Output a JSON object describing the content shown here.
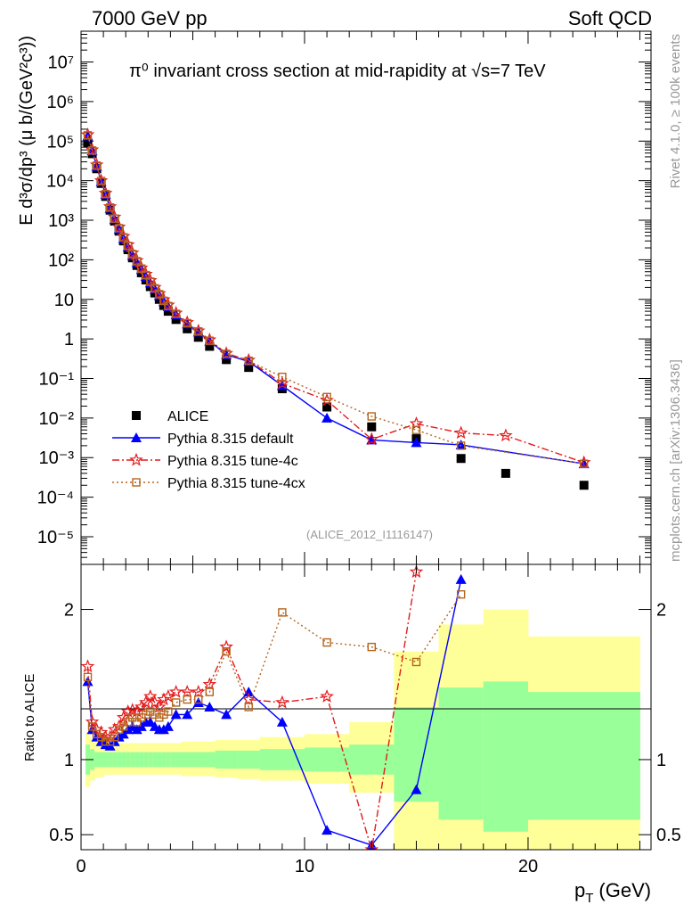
{
  "header": {
    "left": "7000 GeV pp",
    "right": "Soft QCD",
    "side_top": "Rivet 4.1.0, ≥ 100k events",
    "side_bottom": "mcplots.cern.ch [arXiv:1306.3436]"
  },
  "chart_data": [
    {
      "type": "scatter",
      "panel": "main",
      "title": "π⁰ invariant cross section at mid-rapidity at √s=7 TeV",
      "ylabel": "E d³σ/dp³ (μ b/(GeV²c³))",
      "xlabel": "",
      "yscale": "log",
      "xlim": [
        0,
        25.5
      ],
      "ylim": [
        2e-06,
        60000000.0
      ],
      "yticks": [
        "10⁻⁵",
        "10⁻⁴",
        "10⁻³",
        "10⁻²",
        "10⁻¹",
        "1",
        "10",
        "10²",
        "10³",
        "10⁴",
        "10⁵",
        "10⁶",
        "10⁷"
      ],
      "analysis_tag": "(ALICE_2012_I1116147)",
      "legend_position": "lower-left",
      "series": [
        {
          "name": "ALICE",
          "color": "#000000",
          "marker": "square",
          "x": [
            0.3,
            0.5,
            0.7,
            0.9,
            1.1,
            1.3,
            1.5,
            1.7,
            1.9,
            2.1,
            2.3,
            2.5,
            2.7,
            2.9,
            3.1,
            3.3,
            3.5,
            3.7,
            3.9,
            4.25,
            4.75,
            5.25,
            5.75,
            6.5,
            7.5,
            9.0,
            11.0,
            13.0,
            15.0,
            17.0,
            19.0,
            22.5
          ],
          "y": [
            90000,
            48000,
            20000,
            8500,
            4000,
            1800,
            950,
            530,
            300,
            180,
            112,
            72,
            47,
            31,
            21,
            14.5,
            10,
            7,
            5,
            3.1,
            1.8,
            1.1,
            0.65,
            0.3,
            0.19,
            0.055,
            0.019,
            0.006,
            0.003,
            0.00095,
            0.0004,
            0.0002
          ]
        },
        {
          "name": "Pythia 8.315 default",
          "color": "#0000ff",
          "marker": "triangle",
          "line": "solid",
          "x": [
            0.3,
            0.5,
            0.7,
            0.9,
            1.1,
            1.3,
            1.5,
            1.7,
            1.9,
            2.1,
            2.3,
            2.5,
            2.7,
            2.9,
            3.1,
            3.3,
            3.5,
            3.7,
            3.9,
            4.25,
            4.75,
            5.25,
            5.75,
            6.5,
            7.5,
            9.0,
            11.0,
            13.0,
            15.0,
            17.0,
            22.5
          ],
          "y": [
            135000,
            57000,
            23000,
            9500,
            4500,
            2000,
            1050,
            590,
            340,
            210,
            130,
            85,
            57,
            38,
            26,
            18,
            12.5,
            8.8,
            6.5,
            4.1,
            2.4,
            1.5,
            0.88,
            0.4,
            0.27,
            0.066,
            0.01,
            0.0028,
            0.0024,
            0.0021,
            0.0007
          ]
        },
        {
          "name": "Pythia 8.315 tune-4c",
          "color": "#e41a1c",
          "marker": "star",
          "line": "dash-dot",
          "x": [
            0.3,
            0.5,
            0.7,
            0.9,
            1.1,
            1.3,
            1.5,
            1.7,
            1.9,
            2.1,
            2.3,
            2.5,
            2.7,
            2.9,
            3.1,
            3.3,
            3.5,
            3.7,
            3.9,
            4.25,
            4.75,
            5.25,
            5.75,
            6.5,
            7.5,
            9.0,
            11.0,
            13.0,
            15.0,
            17.0,
            19.0,
            22.5
          ],
          "y": [
            145000,
            60000,
            25000,
            10000,
            4800,
            2200,
            1200,
            670,
            390,
            240,
            148,
            96,
            62,
            43,
            30,
            20,
            14,
            9.8,
            7.2,
            4.5,
            2.6,
            1.6,
            0.95,
            0.43,
            0.29,
            0.075,
            0.028,
            0.0029,
            0.0072,
            0.0042,
            0.0036,
            0.00075
          ]
        },
        {
          "name": "Pythia 8.315 tune-4cx",
          "color": "#b5651d",
          "marker": "open-square",
          "line": "dotted",
          "x": [
            0.3,
            0.5,
            0.7,
            0.9,
            1.1,
            1.3,
            1.5,
            1.7,
            1.9,
            2.1,
            2.3,
            2.5,
            2.7,
            2.9,
            3.1,
            3.3,
            3.5,
            3.7,
            3.9,
            4.25,
            4.75,
            5.25,
            5.75,
            6.5,
            7.5,
            9.0,
            11.0,
            13.0,
            15.0,
            17.0,
            22.5
          ],
          "y": [
            140000,
            58000,
            24000,
            9800,
            4600,
            2100,
            1100,
            630,
            370,
            225,
            140,
            92,
            60,
            41,
            28,
            19,
            13.5,
            9.2,
            6.8,
            4.3,
            2.5,
            1.55,
            0.9,
            0.42,
            0.28,
            0.11,
            0.034,
            0.011,
            0.005,
            0.002,
            0.0007
          ]
        }
      ]
    },
    {
      "type": "line",
      "panel": "ratio",
      "ylabel": "Ratio to ALICE",
      "xlabel": "p_T (GeV)",
      "xlabel_main": "p",
      "xlabel_sub": "T",
      "xlabel_unit": "(GeV)",
      "xlim": [
        0,
        25.5
      ],
      "ylim": [
        0.4,
        2.3
      ],
      "xticks": [
        "0",
        "10",
        "20"
      ],
      "yticks": [
        "0.5",
        "1",
        "2"
      ],
      "uncertainty_bands": {
        "edges": [
          0.2,
          0.4,
          0.6,
          0.8,
          1.0,
          1.2,
          1.4,
          1.6,
          1.8,
          2.0,
          2.2,
          2.4,
          2.6,
          2.8,
          3.0,
          3.2,
          3.4,
          3.6,
          3.8,
          4.0,
          4.5,
          5.0,
          5.5,
          6.0,
          7.0,
          8.0,
          10.0,
          12.0,
          14.0,
          16.0,
          18.0,
          20.0,
          25.0
        ],
        "stat_lo": [
          0.9,
          0.93,
          0.95,
          0.95,
          0.95,
          0.95,
          0.95,
          0.95,
          0.95,
          0.95,
          0.95,
          0.95,
          0.95,
          0.95,
          0.95,
          0.95,
          0.95,
          0.95,
          0.95,
          0.95,
          0.95,
          0.95,
          0.95,
          0.94,
          0.94,
          0.93,
          0.92,
          0.9,
          0.72,
          0.6,
          0.52,
          0.6
        ],
        "stat_hi": [
          1.1,
          1.07,
          1.05,
          1.05,
          1.05,
          1.05,
          1.05,
          1.05,
          1.05,
          1.05,
          1.05,
          1.05,
          1.05,
          1.05,
          1.05,
          1.05,
          1.05,
          1.05,
          1.05,
          1.05,
          1.05,
          1.05,
          1.05,
          1.06,
          1.06,
          1.07,
          1.08,
          1.1,
          1.35,
          1.48,
          1.52,
          1.45
        ],
        "total_lo": [
          0.82,
          0.86,
          0.88,
          0.88,
          0.9,
          0.9,
          0.9,
          0.9,
          0.9,
          0.9,
          0.9,
          0.9,
          0.9,
          0.9,
          0.9,
          0.9,
          0.9,
          0.9,
          0.9,
          0.9,
          0.89,
          0.89,
          0.89,
          0.88,
          0.87,
          0.86,
          0.84,
          0.78,
          0.4,
          0.4,
          0.4,
          0.4
        ],
        "total_hi": [
          1.18,
          1.14,
          1.12,
          1.12,
          1.11,
          1.11,
          1.11,
          1.11,
          1.11,
          1.11,
          1.11,
          1.11,
          1.11,
          1.11,
          1.11,
          1.11,
          1.11,
          1.11,
          1.11,
          1.11,
          1.12,
          1.12,
          1.12,
          1.13,
          1.13,
          1.15,
          1.17,
          1.25,
          1.72,
          1.9,
          2.0,
          1.82
        ]
      },
      "series": [
        {
          "name": "Pythia 8.315 default",
          "x": [
            0.3,
            0.5,
            0.7,
            0.9,
            1.1,
            1.3,
            1.5,
            1.7,
            1.9,
            2.1,
            2.3,
            2.5,
            2.7,
            2.9,
            3.1,
            3.3,
            3.5,
            3.7,
            3.9,
            4.25,
            4.75,
            5.25,
            5.75,
            6.5,
            7.5,
            9.0,
            11.0,
            13.0,
            15.0,
            17.0
          ],
          "y": [
            1.52,
            1.2,
            1.15,
            1.12,
            1.1,
            1.09,
            1.12,
            1.15,
            1.17,
            1.2,
            1.22,
            1.2,
            1.22,
            1.25,
            1.25,
            1.22,
            1.2,
            1.2,
            1.22,
            1.3,
            1.3,
            1.38,
            1.35,
            1.3,
            1.45,
            1.25,
            0.53,
            0.43,
            0.8,
            2.2
          ]
        },
        {
          "name": "Pythia 8.315 tune-4c",
          "x": [
            0.3,
            0.5,
            0.7,
            0.9,
            1.1,
            1.3,
            1.5,
            1.7,
            1.9,
            2.1,
            2.3,
            2.5,
            2.7,
            2.9,
            3.1,
            3.3,
            3.5,
            3.7,
            3.9,
            4.25,
            4.75,
            5.25,
            5.75,
            6.5,
            7.5,
            9.0,
            11.0,
            13.0,
            15.0
          ],
          "y": [
            1.62,
            1.25,
            1.2,
            1.18,
            1.15,
            1.15,
            1.2,
            1.22,
            1.28,
            1.32,
            1.33,
            1.32,
            1.35,
            1.38,
            1.42,
            1.38,
            1.35,
            1.4,
            1.42,
            1.45,
            1.45,
            1.45,
            1.5,
            1.75,
            1.4,
            1.38,
            1.42,
            0.4,
            2.25
          ]
        },
        {
          "name": "Pythia 8.315 tune-4cx",
          "x": [
            0.3,
            0.5,
            0.7,
            0.9,
            1.1,
            1.3,
            1.5,
            1.7,
            1.9,
            2.1,
            2.3,
            2.5,
            2.7,
            2.9,
            3.1,
            3.3,
            3.5,
            3.7,
            3.9,
            4.25,
            4.75,
            5.25,
            5.75,
            6.5,
            7.5,
            9.0,
            11.0,
            13.0,
            15.0,
            17.0
          ],
          "y": [
            1.55,
            1.22,
            1.17,
            1.15,
            1.12,
            1.12,
            1.15,
            1.2,
            1.22,
            1.25,
            1.28,
            1.25,
            1.28,
            1.3,
            1.32,
            1.3,
            1.28,
            1.3,
            1.32,
            1.38,
            1.4,
            1.4,
            1.45,
            1.72,
            1.35,
            1.98,
            1.78,
            1.75,
            1.65,
            2.1
          ]
        }
      ]
    }
  ]
}
